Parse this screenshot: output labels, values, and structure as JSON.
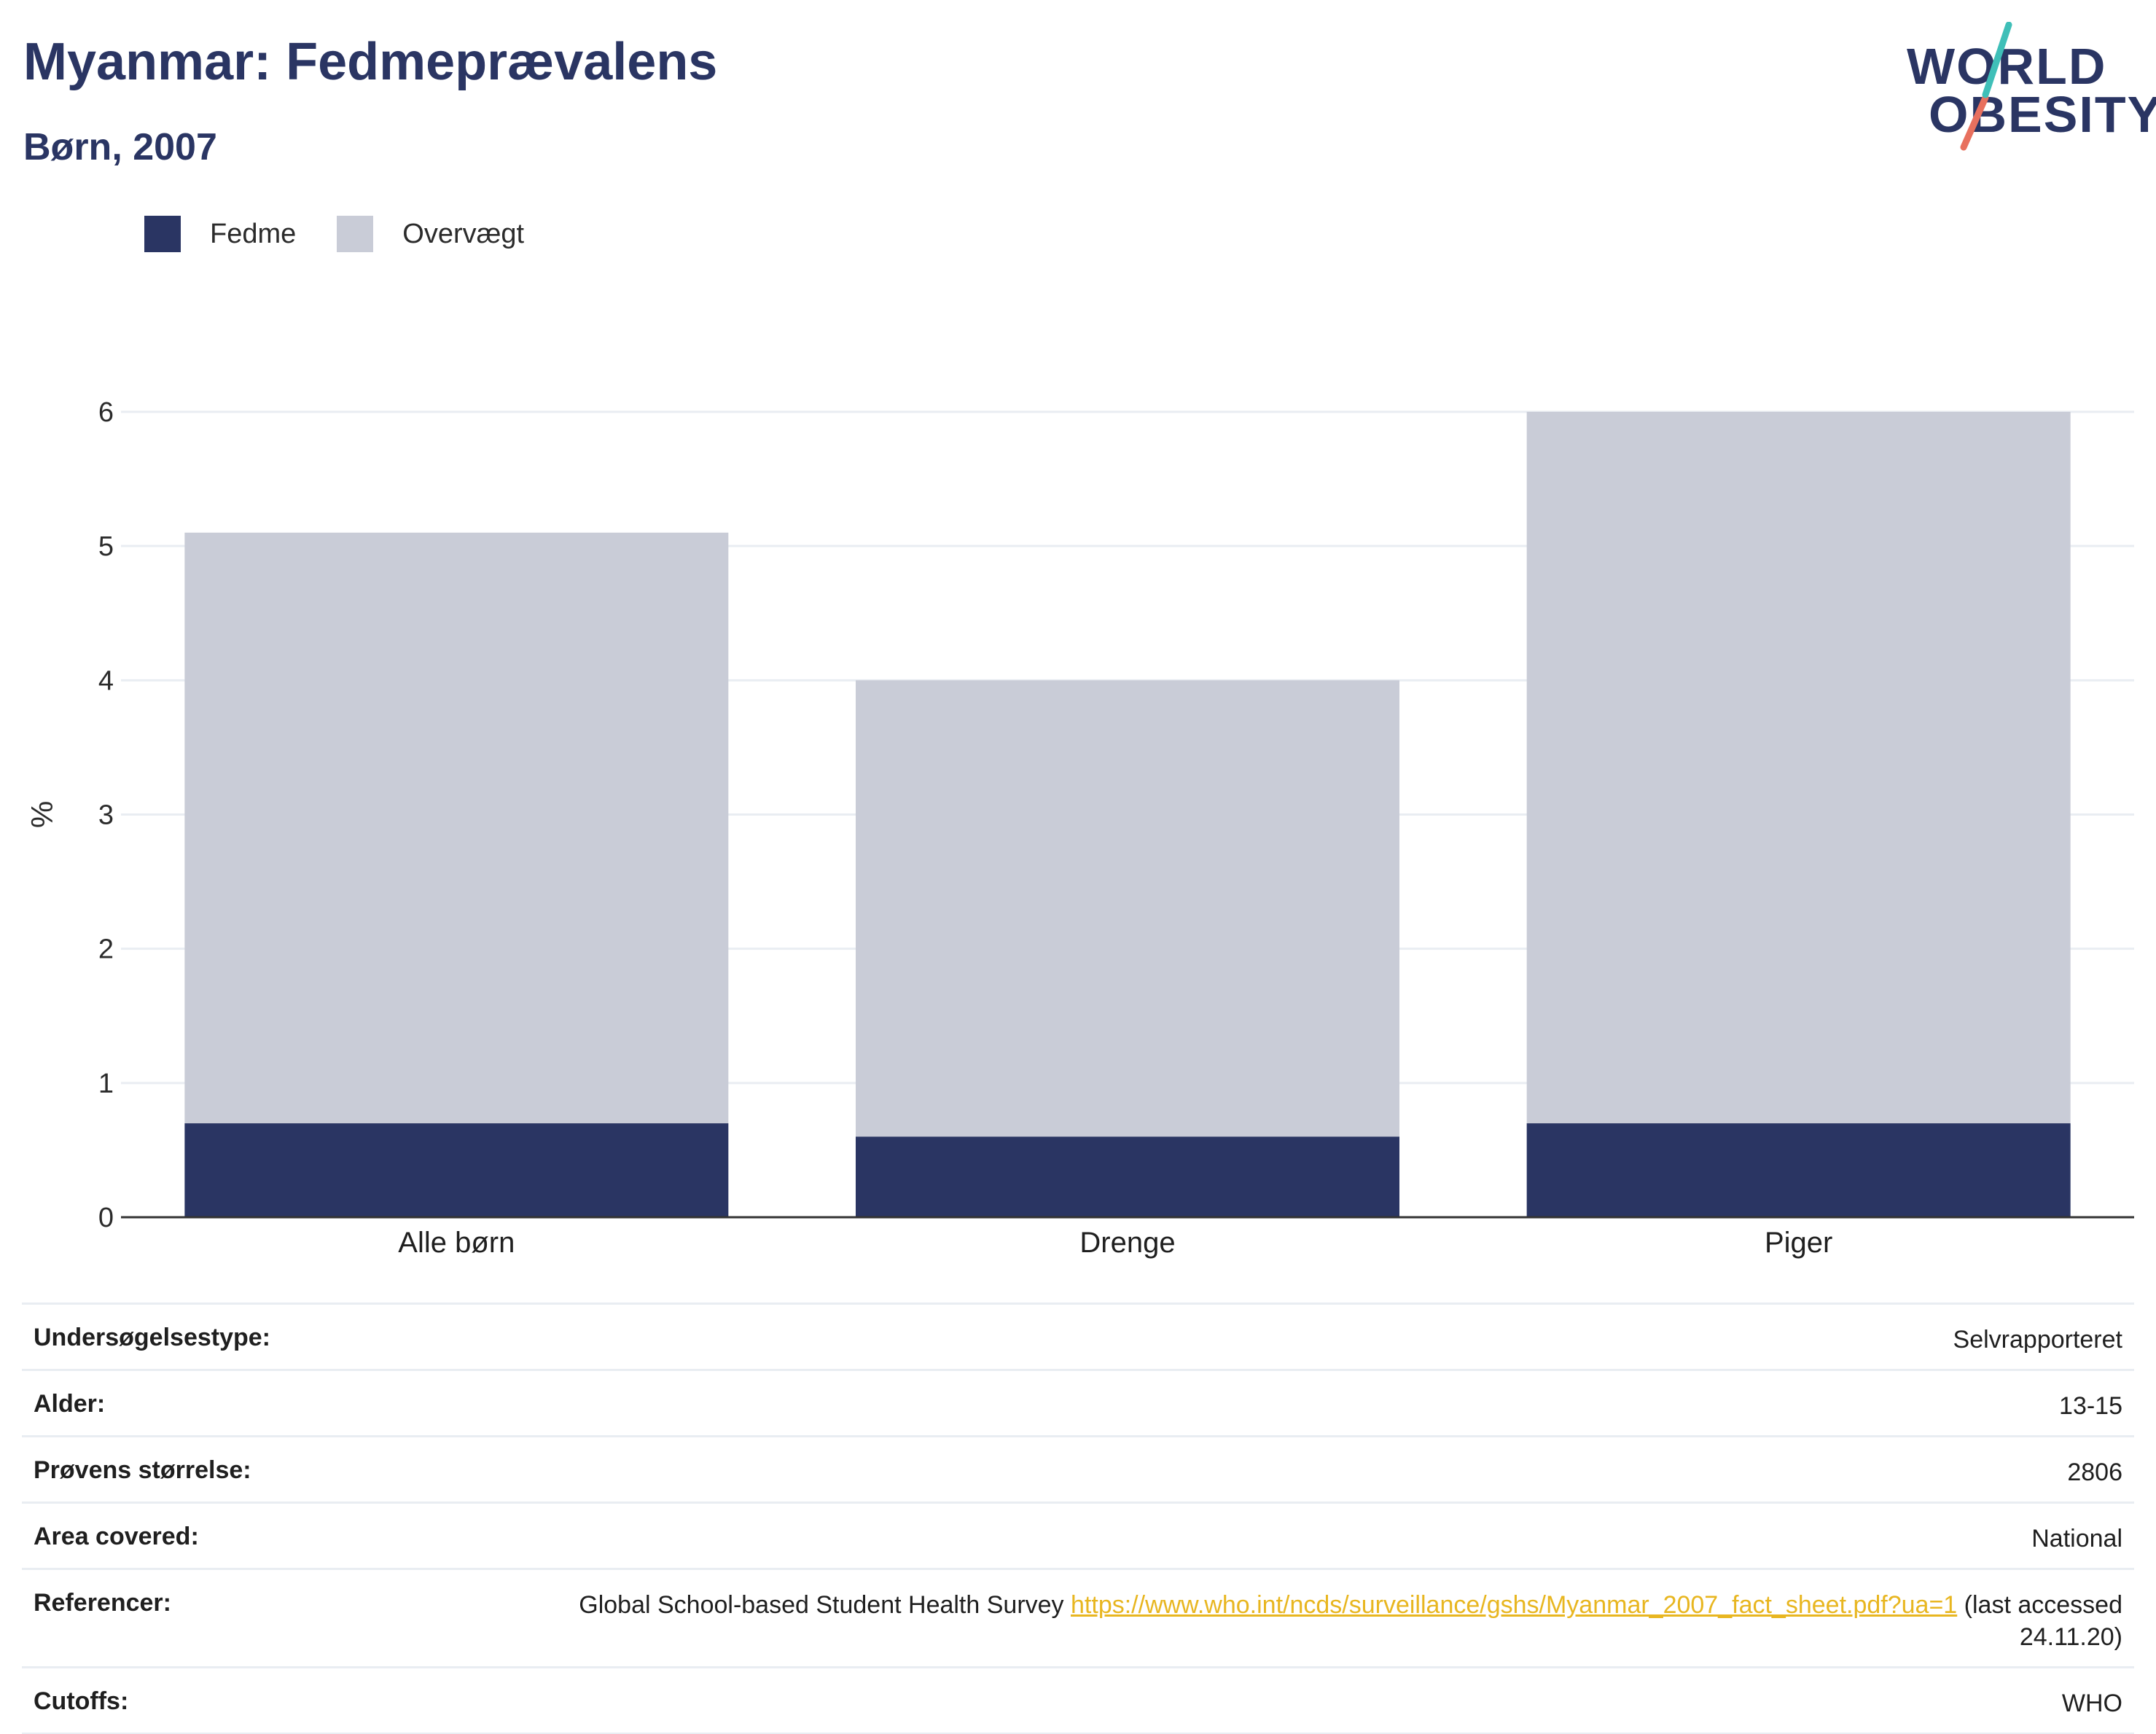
{
  "header": {
    "title": "Myanmar: Fedmeprævalens",
    "subtitle": "Børn, 2007"
  },
  "logo": {
    "line1": "WORLD",
    "line2": "OBESITY",
    "colors": {
      "text": "#2a3563",
      "teal": "#3fbfb8",
      "coral": "#e8705e"
    }
  },
  "colors": {
    "obesity": "#2a3563",
    "overweight": "#c9ccd7",
    "grid": "#e9edf2",
    "axis": "#333333",
    "link": "#e8b620"
  },
  "chart_data": {
    "type": "bar",
    "stacked": true,
    "categories": [
      "Alle børn",
      "Drenge",
      "Piger"
    ],
    "series": [
      {
        "name": "Fedme",
        "values": [
          0.7,
          0.6,
          0.7
        ],
        "color": "#2a3563"
      },
      {
        "name": "Overvægt",
        "values": [
          4.4,
          3.4,
          5.3
        ],
        "color": "#c9ccd7"
      }
    ],
    "totals": [
      5.1,
      4.0,
      6.0
    ],
    "ylabel": "%",
    "ylim": [
      0,
      6
    ],
    "yticks": [
      0,
      1,
      2,
      3,
      4,
      5,
      6
    ],
    "grid": true,
    "legend_position": "top-left"
  },
  "info": {
    "rows": [
      {
        "label": "Undersøgelsestype:",
        "value": "Selvrapporteret"
      },
      {
        "label": "Alder:",
        "value": "13-15"
      },
      {
        "label": "Prøvens størrelse:",
        "value": "2806"
      },
      {
        "label": "Area covered:",
        "value": "National"
      },
      {
        "label": "Referencer:",
        "value_prefix": "Global School-based Student Health Survey",
        "link": "https://www.who.int/ncds/surveillance/gshs/Myanmar_2007_fact_sheet.pdf?ua=1",
        "value_suffix": "(last accessed 24.11.20)"
      },
      {
        "label": "Cutoffs:",
        "value": "WHO"
      }
    ]
  }
}
